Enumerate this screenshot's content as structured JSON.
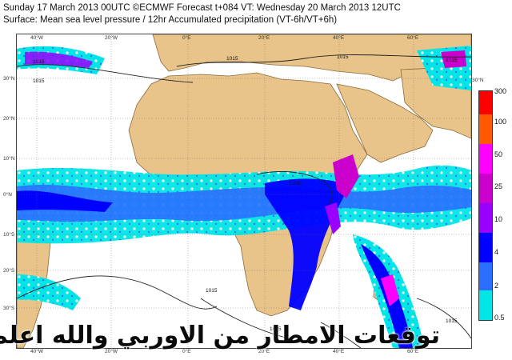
{
  "header": {
    "line1": "Sunday 17 March 2013 00UTC ©ECMWF Forecast t+084 VT: Wednesday 20 March 2013 12UTC",
    "line2": "Surface: Mean sea level pressure / 12hr Accumulated precipitation (VT-6h/VT+6h)"
  },
  "axes": {
    "lon_top": [
      "40°W",
      "20°W",
      "0°E",
      "20°E",
      "40°E",
      "60°E"
    ],
    "lon_bottom": [
      "40°W",
      "20°W",
      "0°E",
      "20°E",
      "40°E",
      "60°E"
    ],
    "lat_left": [
      "30°N",
      "20°N",
      "10°N",
      "0°N",
      "10°S",
      "20°S",
      "30°S"
    ],
    "lat_right": [
      "30°N",
      "20°N",
      "10°N",
      "0°N",
      "10°S",
      "20°S",
      "30°S"
    ]
  },
  "isobars": {
    "labels": [
      "1015",
      "1015",
      "1015",
      "1015",
      "1005",
      "1015",
      "1015",
      "1015",
      "1015"
    ]
  },
  "legend": {
    "levels": [
      "300",
      "100",
      "50",
      "25",
      "10",
      "4",
      "2",
      "0.5"
    ],
    "colors": [
      "#ff0000",
      "#ff5a00",
      "#ff00ff",
      "#cc00cc",
      "#9900ff",
      "#0000ff",
      "#2a6fff",
      "#00e6e6"
    ]
  },
  "watermark": "توقعات الامطار من الاوربي والله اعلم"
}
